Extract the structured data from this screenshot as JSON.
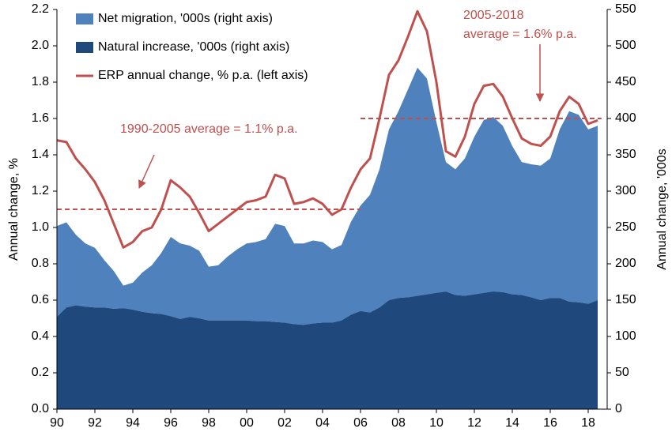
{
  "chart_data": {
    "type": "stacked_area_line",
    "y_label": "Annual change, %",
    "y2_label": "Annual change, '000s",
    "legend": "top-left",
    "x": [
      1990,
      1990.5,
      1991,
      1991.5,
      1992,
      1992.5,
      1993,
      1993.5,
      1994,
      1994.5,
      1995,
      1995.5,
      1996,
      1996.5,
      1997,
      1997.5,
      1998,
      1998.5,
      1999,
      1999.5,
      2000,
      2000.5,
      2001,
      2001.5,
      2002,
      2002.5,
      2003,
      2003.5,
      2004,
      2004.5,
      2005,
      2005.5,
      2006,
      2006.5,
      2007,
      2007.5,
      2008,
      2008.5,
      2009,
      2009.5,
      2010,
      2010.5,
      2011,
      2011.5,
      2012,
      2012.5,
      2013,
      2013.5,
      2014,
      2014.5,
      2015,
      2015.5,
      2016,
      2016.5,
      2017,
      2017.5,
      2018,
      2018.5
    ],
    "series": [
      {
        "name": "Net migration, '000s (right axis)",
        "color": "#4f81bd",
        "axis": "y2",
        "kind": "area",
        "values": [
          125,
          117,
          97,
          87,
          82,
          65,
          52,
          31,
          37,
          54,
          66,
          84,
          109,
          104,
          98,
          93,
          74,
          76,
          88,
          98,
          106,
          109,
          113,
          135,
          133,
          111,
          112,
          114,
          111,
          101,
          104,
          128,
          145,
          162,
          190,
          235,
          257,
          286,
          314,
          297,
          235,
          178,
          173,
          189,
          217,
          238,
          240,
          229,
          204,
          183,
          183,
          185,
          192,
          232,
          262,
          258,
          240,
          240
        ]
      },
      {
        "name": "Natural increase, '000s (right axis)",
        "color": "#1f497d",
        "axis": "y2",
        "kind": "area",
        "values": [
          127,
          140,
          143,
          141,
          140,
          140,
          138,
          139,
          137,
          134,
          132,
          131,
          128,
          124,
          127,
          125,
          122,
          122,
          122,
          122,
          122,
          121,
          121,
          120,
          119,
          117,
          116,
          118,
          119,
          119,
          122,
          130,
          135,
          133,
          140,
          150,
          153,
          154,
          156,
          158,
          160,
          162,
          157,
          156,
          158,
          160,
          162,
          161,
          158,
          157,
          154,
          150,
          153,
          153,
          148,
          147,
          145,
          150
        ]
      },
      {
        "name": "ERP annual change, % p.a. (left axis)",
        "color": "#c0504d",
        "axis": "y",
        "kind": "line",
        "values": [
          1.48,
          1.47,
          1.38,
          1.32,
          1.25,
          1.15,
          1.02,
          0.89,
          0.92,
          0.98,
          1.0,
          1.1,
          1.26,
          1.22,
          1.17,
          1.08,
          0.98,
          1.02,
          1.06,
          1.1,
          1.14,
          1.15,
          1.17,
          1.29,
          1.27,
          1.13,
          1.14,
          1.16,
          1.13,
          1.07,
          1.1,
          1.22,
          1.32,
          1.38,
          1.6,
          1.84,
          1.92,
          2.05,
          2.19,
          2.08,
          1.8,
          1.42,
          1.39,
          1.5,
          1.68,
          1.78,
          1.79,
          1.72,
          1.6,
          1.49,
          1.46,
          1.45,
          1.5,
          1.64,
          1.72,
          1.68,
          1.57,
          1.59
        ]
      }
    ],
    "reference_lines": [
      {
        "x": [
          1990,
          2006
        ],
        "value": 1.1,
        "color": "#c0504d"
      },
      {
        "x": [
          2006,
          2018.7
        ],
        "value": 1.6,
        "color": "#c0504d"
      }
    ],
    "annotations": [
      "1990-2005 average = 1.1% p.a.",
      "2005-2018",
      "average = 1.6% p.a."
    ],
    "xlim": [
      1990,
      2019
    ],
    "xticks": [
      {
        "value": 1990,
        "label": "90"
      },
      {
        "value": 1992,
        "label": "92"
      },
      {
        "value": 1994,
        "label": "94"
      },
      {
        "value": 1996,
        "label": "96"
      },
      {
        "value": 1998,
        "label": "98"
      },
      {
        "value": 2000,
        "label": "00"
      },
      {
        "value": 2002,
        "label": "02"
      },
      {
        "value": 2004,
        "label": "04"
      },
      {
        "value": 2006,
        "label": "06"
      },
      {
        "value": 2008,
        "label": "08"
      },
      {
        "value": 2010,
        "label": "10"
      },
      {
        "value": 2012,
        "label": "12"
      },
      {
        "value": 2014,
        "label": "14"
      },
      {
        "value": 2016,
        "label": "16"
      },
      {
        "value": 2018,
        "label": "18"
      }
    ],
    "ylim": [
      0,
      2.2
    ],
    "yticks": [
      {
        "value": 0,
        "label": "0.0"
      },
      0.2,
      0.4,
      0.6,
      0.8,
      {
        "value": 1,
        "label": "1.0"
      },
      1.2,
      1.4,
      1.6,
      1.8,
      {
        "value": 2,
        "label": "2.0"
      },
      2.2
    ],
    "y2lim": [
      0,
      550
    ],
    "y2ticks": [
      0,
      50,
      100,
      150,
      200,
      250,
      300,
      350,
      400,
      450,
      500,
      550
    ]
  }
}
